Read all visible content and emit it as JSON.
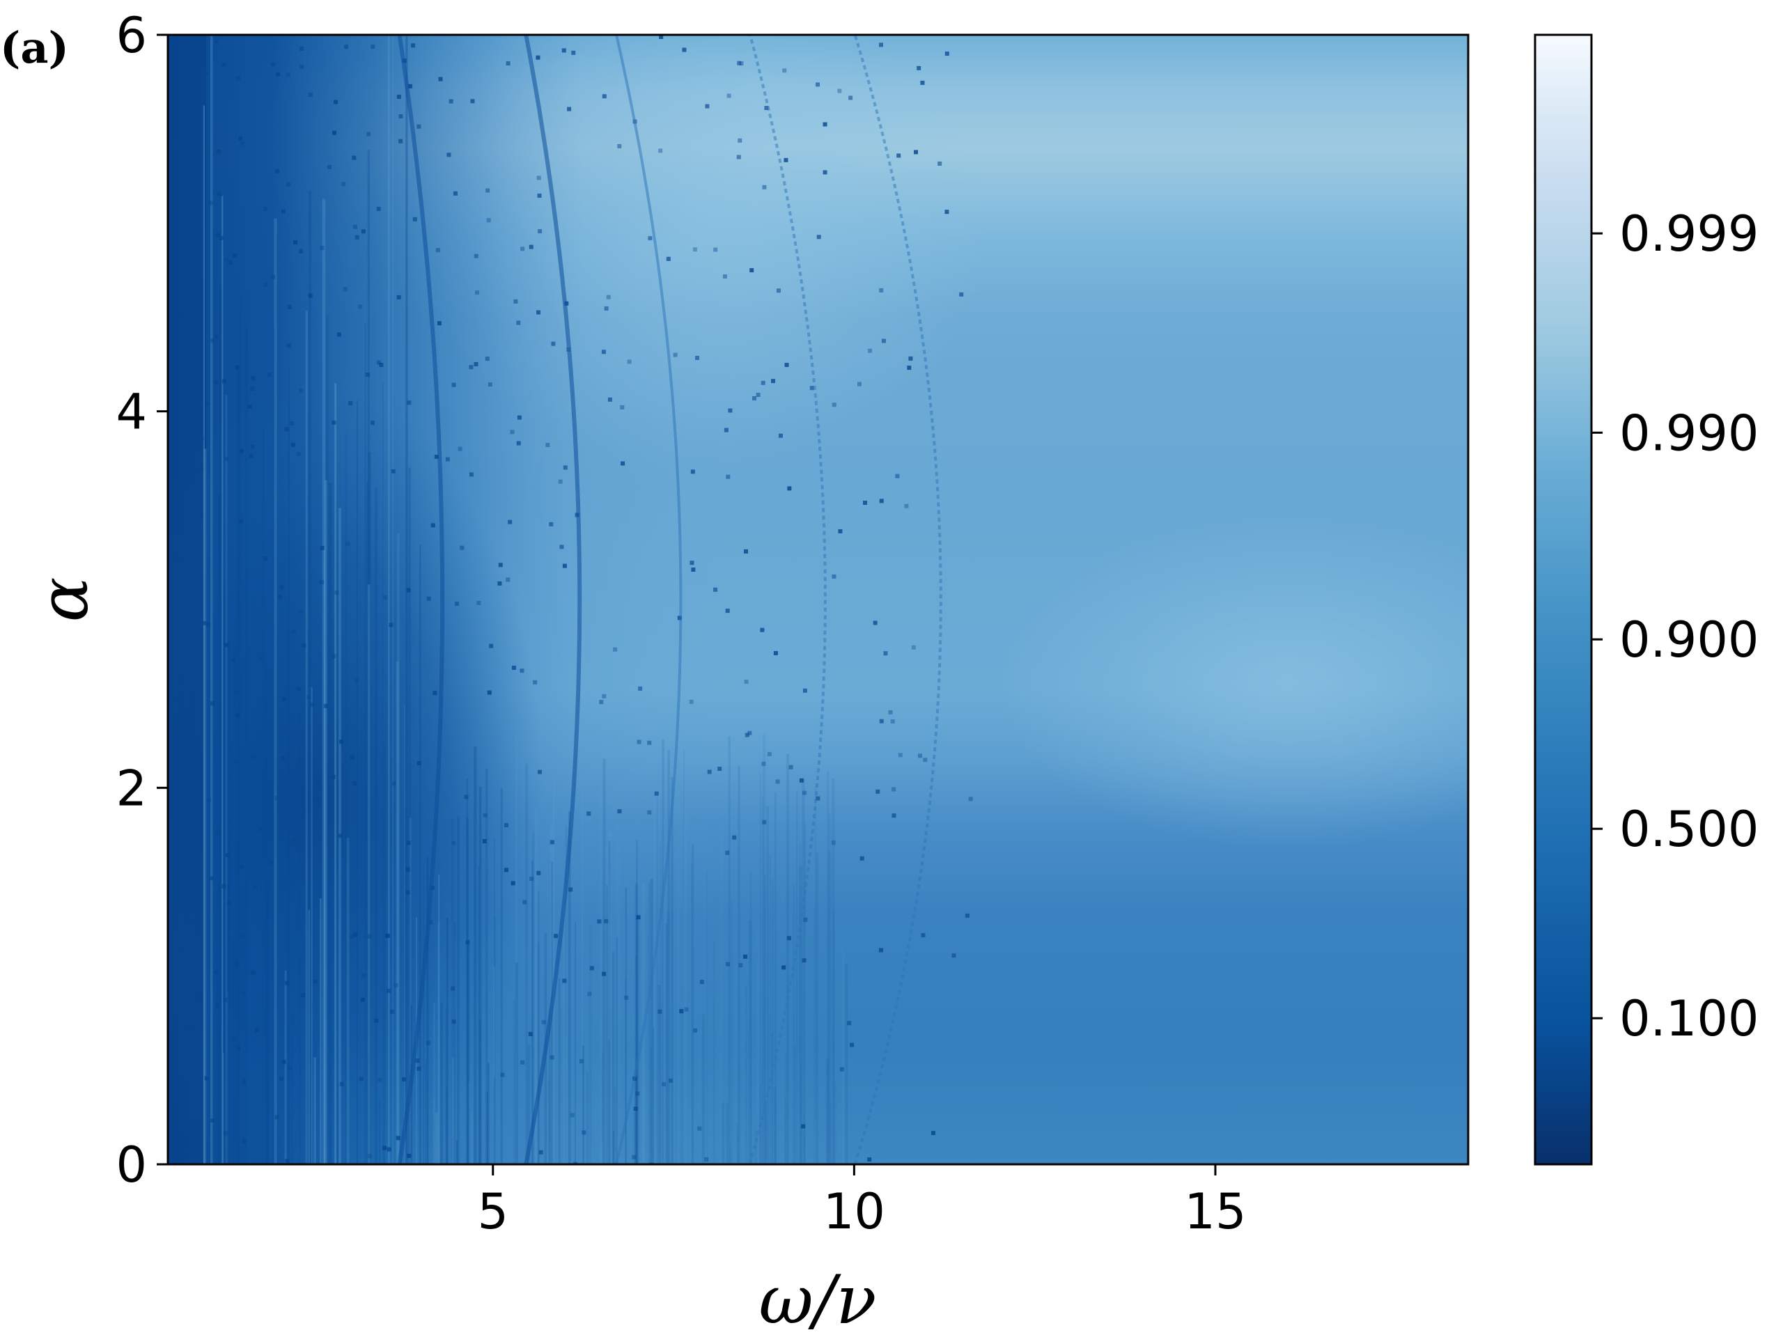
{
  "panel_label": "(a)",
  "chart_data": {
    "type": "heatmap",
    "title": "",
    "xlabel": "ω/ν",
    "ylabel": "α",
    "xlim": [
      0.5,
      18.5
    ],
    "ylim": [
      0,
      6
    ],
    "x_ticks": [
      5,
      10,
      15
    ],
    "x_tick_labels": [
      "5",
      "10",
      "15"
    ],
    "y_ticks": [
      0,
      2,
      4,
      6
    ],
    "y_tick_labels": [
      "0",
      "2",
      "4",
      "6"
    ],
    "colorbar": {
      "ticks": [
        0.1,
        0.5,
        0.9,
        0.99,
        0.999
      ],
      "tick_labels": [
        "0.100",
        "0.500",
        "0.900",
        "0.990",
        "0.999"
      ],
      "scale": "logit",
      "range": [
        0.02,
        0.9999
      ],
      "colormap": "Blues_r",
      "colormap_stops": [
        "#08306b",
        "#08519c",
        "#2171b5",
        "#4292c6",
        "#6baed6",
        "#9ecae1",
        "#c6dbef",
        "#deebf7",
        "#f7fbff"
      ]
    },
    "features": {
      "dark_region_low_omega": "values ≈ 0.1–0.3 for ω/ν < 5",
      "mid_band": "values ≈ 0.5–0.7 for α < 1.8",
      "light_band_high_alpha": "values ≈ 0.95–0.99 near α ≈ 5.5"
    },
    "resonance_curves_omega_at_alpha_3": [
      4.3,
      6.2,
      7.6,
      9.6,
      11.2
    ]
  }
}
